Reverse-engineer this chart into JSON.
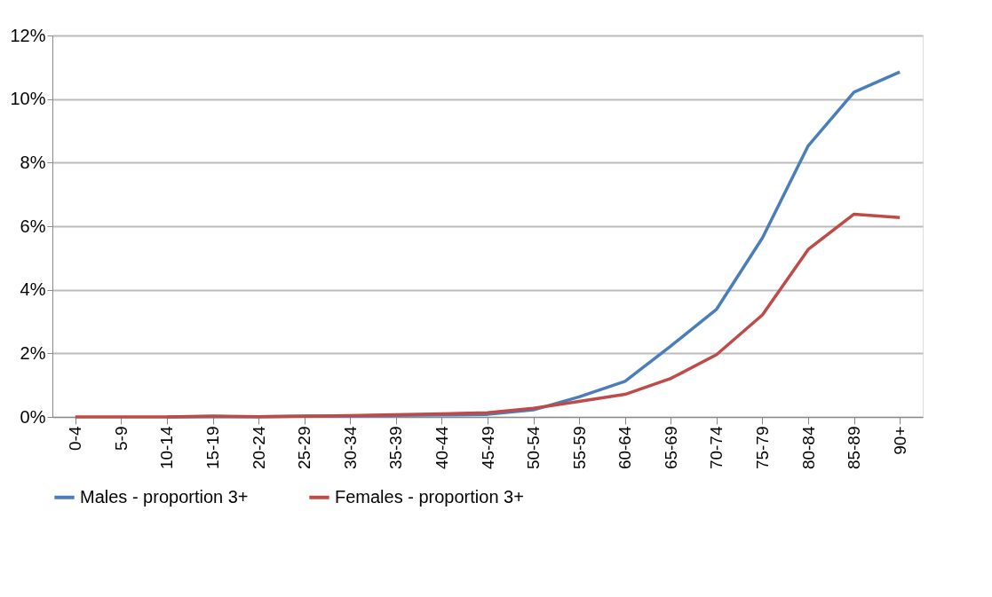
{
  "chart_data": {
    "type": "line",
    "categories": [
      "0-4",
      "5-9",
      "10-14",
      "15-19",
      "20-24",
      "25-29",
      "30-34",
      "35-39",
      "40-44",
      "45-49",
      "50-54",
      "55-59",
      "60-64",
      "65-69",
      "70-74",
      "75-79",
      "80-84",
      "85-89",
      "90+"
    ],
    "series": [
      {
        "name": "Males - proportion 3+",
        "color": "#4a7ebb",
        "values": [
          null,
          null,
          0,
          0.01,
          0.01,
          0.03,
          0.03,
          0.05,
          0.06,
          0.08,
          0.22,
          0.63,
          1.12,
          2.23,
          3.39,
          5.63,
          8.53,
          10.22,
          10.85
        ]
      },
      {
        "name": "Females - proportion 3+",
        "color": "#be4b48",
        "values": [
          0,
          0,
          0,
          0.03,
          0.01,
          0.02,
          0.04,
          0.07,
          0.1,
          0.13,
          0.27,
          0.49,
          0.71,
          1.21,
          1.96,
          3.21,
          5.27,
          6.38,
          6.27
        ]
      }
    ],
    "ylim": [
      0,
      12
    ],
    "yticks": [
      {
        "value": 0,
        "label": "0%"
      },
      {
        "value": 2,
        "label": "2%"
      },
      {
        "value": 4,
        "label": "4%"
      },
      {
        "value": 6,
        "label": "6%"
      },
      {
        "value": 8,
        "label": "8%"
      },
      {
        "value": 10,
        "label": "10%"
      },
      {
        "value": 12,
        "label": "12%"
      }
    ],
    "grid": "y",
    "legend": "bottom",
    "marker": "none",
    "line_style": "solid"
  }
}
